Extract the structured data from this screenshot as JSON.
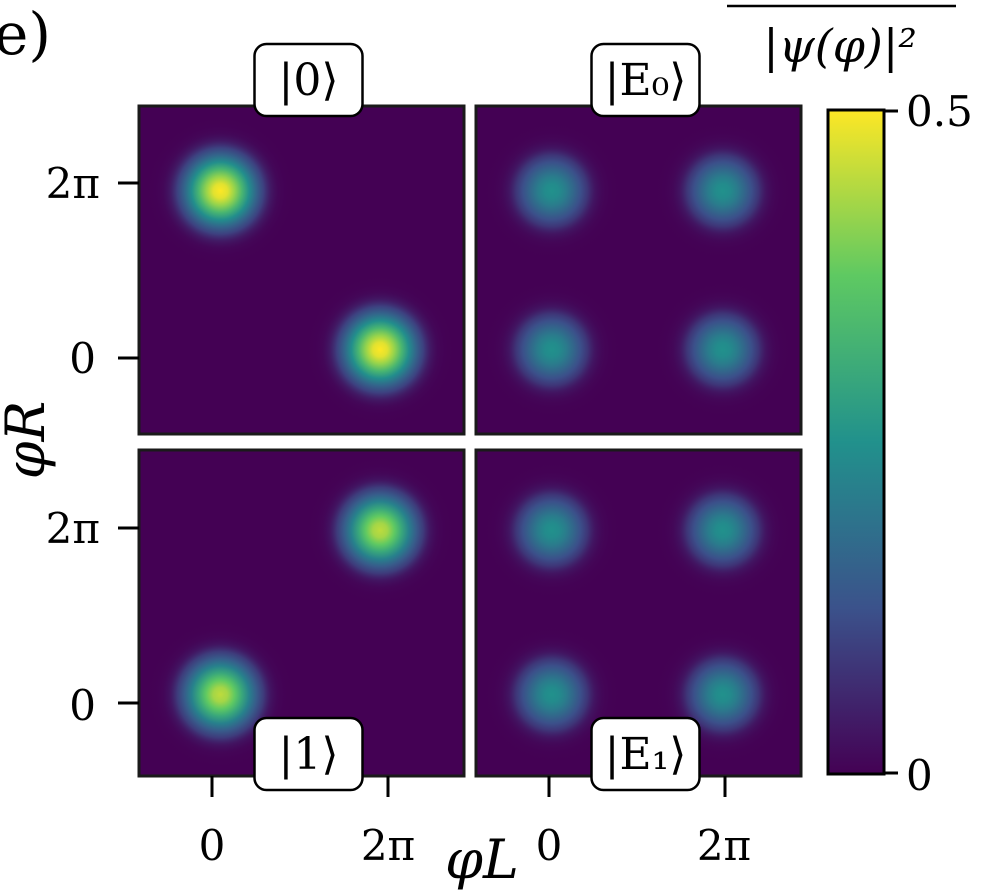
{
  "panel_label": "e)",
  "chart_data": {
    "type": "heatmap",
    "xlabel": "φL",
    "ylabel": "φR",
    "x_ticks": [
      "0",
      "2π"
    ],
    "y_ticks": [
      "0",
      "2π"
    ],
    "colorbar": {
      "label": "|ψ(φ)|²",
      "min": 0,
      "max": 0.5,
      "tick_labels": [
        "0.5",
        "0"
      ],
      "colormap": "viridis",
      "colors": [
        "#440154",
        "#3b528b",
        "#21918c",
        "#5ec962",
        "#fde725"
      ]
    },
    "panels": [
      {
        "id": "state-0",
        "label": "|0⟩",
        "label_position": "top",
        "peaks": [
          {
            "phi_L": 0.3,
            "phi_R": 6.0,
            "value": 0.5
          },
          {
            "phi_L": 6.0,
            "phi_R": 0.3,
            "value": 0.5
          }
        ]
      },
      {
        "id": "state-E0",
        "label": "|E₀⟩",
        "label_position": "top",
        "peaks": [
          {
            "phi_L": 0.1,
            "phi_R": 6.0,
            "value": 0.25
          },
          {
            "phi_L": 6.2,
            "phi_R": 6.0,
            "value": 0.25
          },
          {
            "phi_L": 0.1,
            "phi_R": 0.3,
            "value": 0.25
          },
          {
            "phi_L": 6.2,
            "phi_R": 0.3,
            "value": 0.25
          }
        ]
      },
      {
        "id": "state-1",
        "label": "|1⟩",
        "label_position": "bottom",
        "peaks": [
          {
            "phi_L": 6.0,
            "phi_R": 6.2,
            "value": 0.45
          },
          {
            "phi_L": 0.3,
            "phi_R": 0.3,
            "value": 0.45
          }
        ]
      },
      {
        "id": "state-E1",
        "label": "|E₁⟩",
        "label_position": "bottom",
        "peaks": [
          {
            "phi_L": 0.1,
            "phi_R": 6.2,
            "value": 0.25
          },
          {
            "phi_L": 6.2,
            "phi_R": 6.2,
            "value": 0.25
          },
          {
            "phi_L": 0.1,
            "phi_R": 0.3,
            "value": 0.25
          },
          {
            "phi_L": 6.2,
            "phi_R": 0.3,
            "value": 0.25
          }
        ]
      }
    ]
  }
}
